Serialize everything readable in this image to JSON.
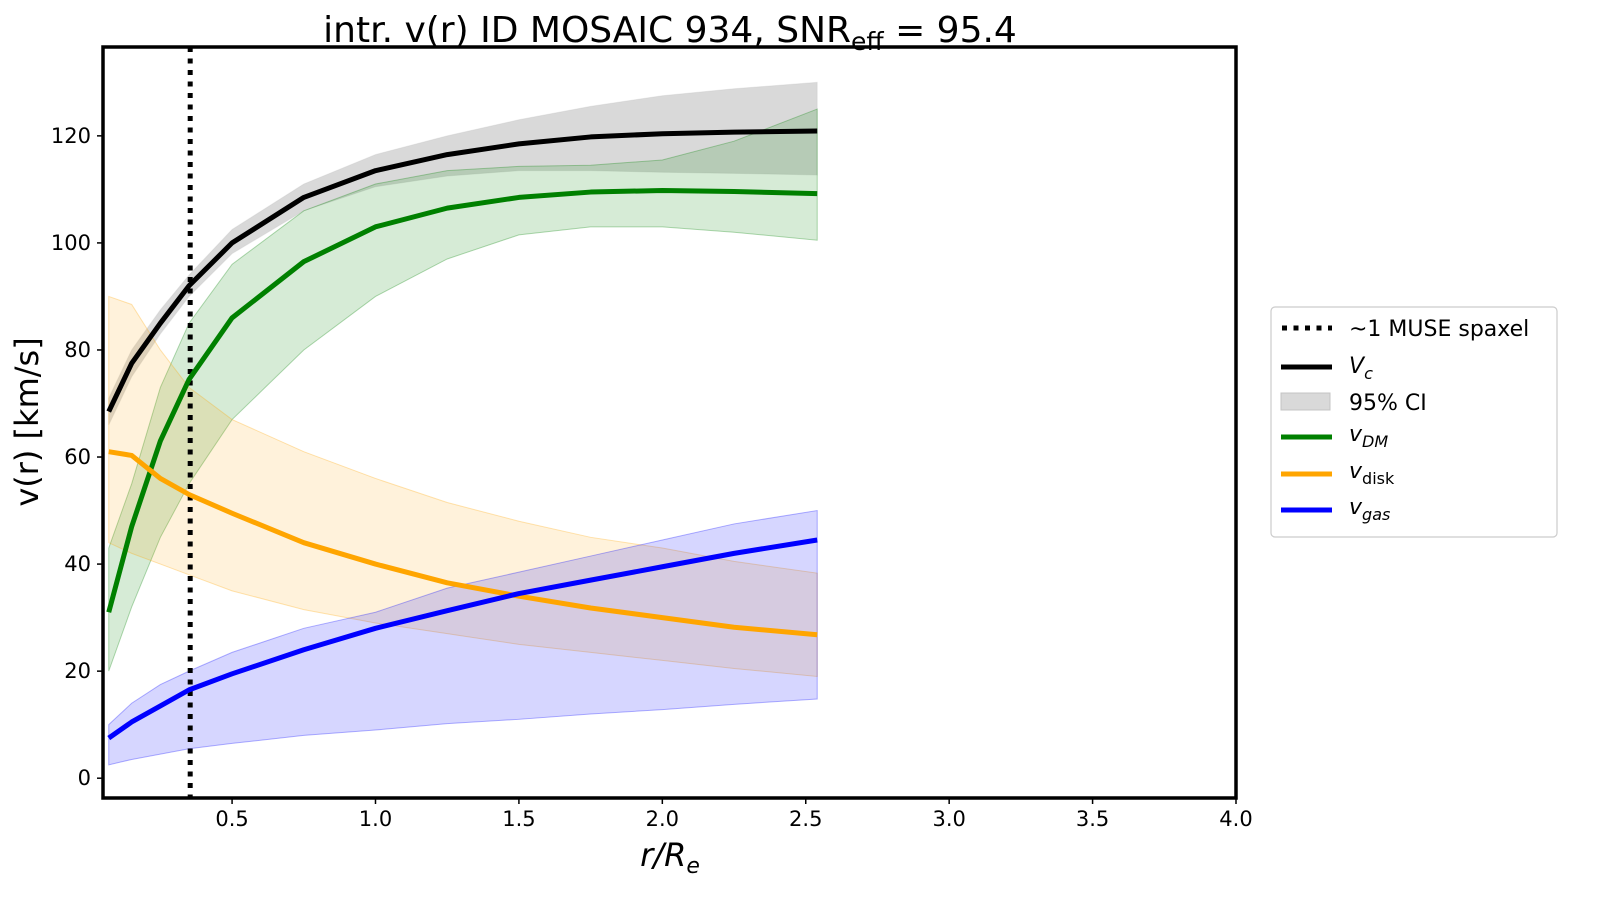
{
  "chart_data": {
    "type": "line",
    "title": {
      "main": "intr. v(r) ID MOSAIC 934, SNR",
      "sub": "eff",
      "tail": " = 95.4"
    },
    "xlabel": {
      "main": "r/R",
      "sub": "e"
    },
    "ylabel": "v(r) [km/s]",
    "xlim": [
      0.05,
      4.0
    ],
    "ylim": [
      -3.7,
      136.6
    ],
    "xticks": [
      0.5,
      1.0,
      1.5,
      2.0,
      2.5,
      3.0,
      3.5,
      4.0
    ],
    "xtick_labels": [
      "0.5",
      "1.0",
      "1.5",
      "2.0",
      "2.5",
      "3.0",
      "3.5",
      "4.0"
    ],
    "yticks": [
      0,
      20,
      40,
      60,
      80,
      100,
      120
    ],
    "ytick_labels": [
      "0",
      "20",
      "40",
      "60",
      "80",
      "100",
      "120"
    ],
    "grid": false,
    "legend_placement": "outside-right",
    "vline": {
      "x": 0.354,
      "label": "~1 MUSE spaxel",
      "color": "#000000"
    },
    "ci_label": "95% CI",
    "x": [
      0.07,
      0.15,
      0.25,
      0.35,
      0.5,
      0.75,
      1.0,
      1.25,
      1.5,
      1.75,
      2.0,
      2.25,
      2.54
    ],
    "series": [
      {
        "name": "V",
        "sub": "c",
        "color": "#000000",
        "band_color": "#bfbfbf",
        "values": [
          68.5,
          77.5,
          85,
          92,
          100,
          108.5,
          113.5,
          116.5,
          118.5,
          119.8,
          120.4,
          120.7,
          120.9
        ],
        "lower": [
          66,
          75,
          83,
          90,
          98,
          106,
          110.5,
          112.5,
          113.5,
          113.5,
          113.2,
          113,
          112.7
        ],
        "upper": [
          71,
          80,
          87.5,
          94,
          102.5,
          111,
          116.5,
          120,
          123,
          125.5,
          127.5,
          128.8,
          130
        ]
      },
      {
        "name": "v",
        "sub": "DM",
        "color": "#008000",
        "band_color": "#008000",
        "values": [
          31,
          47,
          63,
          74.5,
          86,
          96.5,
          103,
          106.5,
          108.5,
          109.5,
          109.8,
          109.6,
          109.2
        ],
        "lower": [
          20,
          32,
          45,
          55,
          67,
          80,
          90,
          97,
          101.5,
          103,
          103,
          102,
          100.5
        ],
        "upper": [
          43,
          55,
          73,
          85,
          96,
          106,
          111,
          113.5,
          114.3,
          114.5,
          115.5,
          119,
          125
        ]
      },
      {
        "name": "v",
        "sub": "disk",
        "color": "#ffa500",
        "band_color": "#ffa500",
        "values": [
          61,
          60.3,
          56,
          53,
          49.5,
          44,
          40,
          36.5,
          34,
          31.8,
          30,
          28.2,
          26.8
        ],
        "lower": [
          44,
          42,
          40,
          38,
          35,
          31.5,
          29,
          27,
          25,
          23.5,
          22,
          20.5,
          19
        ],
        "upper": [
          90,
          88.5,
          80,
          73,
          67,
          61,
          56,
          51.5,
          48,
          45,
          43,
          40.5,
          38.3
        ]
      },
      {
        "name": "v",
        "sub": "gas",
        "color": "#0000ff",
        "band_color": "#0000ff",
        "values": [
          7.5,
          10.5,
          13.5,
          16.5,
          19.5,
          24,
          28,
          31.3,
          34.5,
          37,
          39.5,
          42,
          44.5
        ],
        "lower": [
          2.5,
          3.5,
          4.5,
          5.5,
          6.5,
          8,
          9,
          10.2,
          11,
          12,
          12.8,
          13.8,
          14.8
        ],
        "upper": [
          10,
          14,
          17.5,
          20,
          23.5,
          28,
          31,
          35.5,
          38.5,
          41.5,
          44.5,
          47.5,
          50
        ]
      }
    ]
  }
}
